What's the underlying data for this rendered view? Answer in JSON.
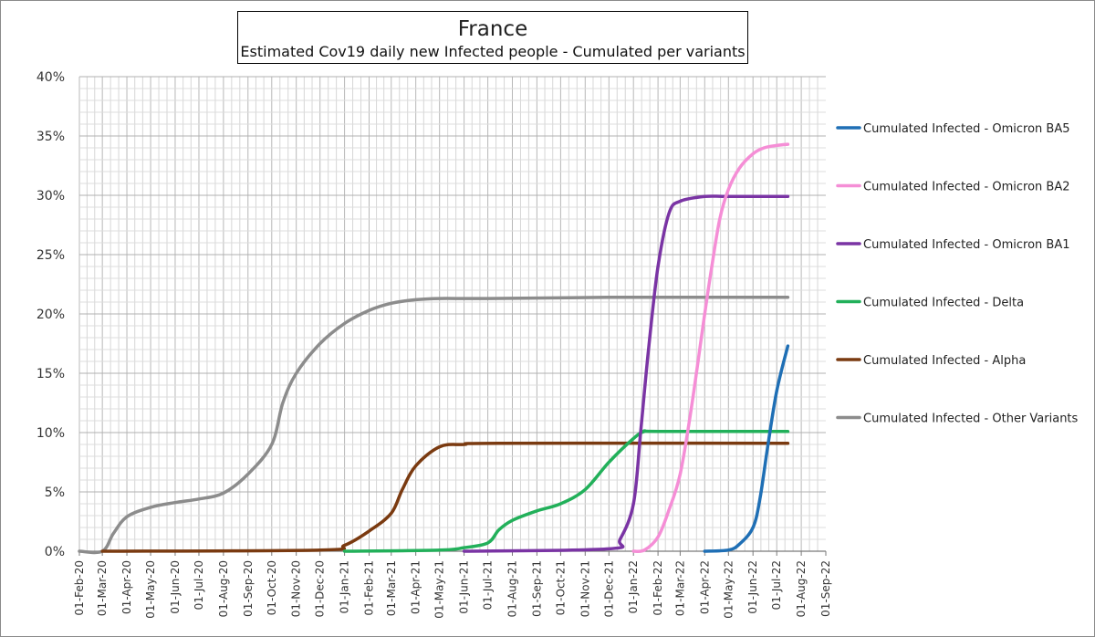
{
  "chart_data": {
    "type": "line",
    "title": "France",
    "subtitle": "Estimated Cov19 daily new Infected people - Cumulated per variants",
    "xlabel": "",
    "ylabel": "",
    "ylim": [
      0,
      40
    ],
    "y_unit": "%",
    "y_ticks": [
      "0%",
      "5%",
      "10%",
      "15%",
      "20%",
      "25%",
      "30%",
      "35%",
      "40%"
    ],
    "x_ticks": [
      "01-Feb-20",
      "01-Mar-20",
      "01-Apr-20",
      "01-May-20",
      "01-Jun-20",
      "01-Jul-20",
      "01-Aug-20",
      "01-Sep-20",
      "01-Oct-20",
      "01-Nov-20",
      "01-Dec-20",
      "01-Jan-21",
      "01-Feb-21",
      "01-Mar-21",
      "01-Apr-21",
      "01-May-21",
      "01-Jun-21",
      "01-Jul-21",
      "01-Aug-21",
      "01-Sep-21",
      "01-Oct-21",
      "01-Nov-21",
      "01-Dec-21",
      "01-Jan-22",
      "01-Feb-22",
      "01-Mar-22",
      "01-Apr-22",
      "01-May-22",
      "01-Jun-22",
      "01-Jul-22",
      "01-Aug-22",
      "01-Sep-22"
    ],
    "grid": true,
    "legend_position": "right",
    "series": [
      {
        "name": "Cumulated Infected - Omicron BA5",
        "color": "#1f6fb5",
        "points": [
          [
            "2022-04-01",
            0
          ],
          [
            "2022-05-01",
            0.1
          ],
          [
            "2022-05-15",
            0.6
          ],
          [
            "2022-06-01",
            2
          ],
          [
            "2022-06-10",
            4.5
          ],
          [
            "2022-06-20",
            9
          ],
          [
            "2022-07-01",
            13.5
          ],
          [
            "2022-07-15",
            17.3
          ]
        ]
      },
      {
        "name": "Cumulated Infected - Omicron BA2",
        "color": "#f58ed6",
        "points": [
          [
            "2022-01-01",
            0
          ],
          [
            "2022-01-15",
            0.1
          ],
          [
            "2022-02-01",
            1.2
          ],
          [
            "2022-02-15",
            3.5
          ],
          [
            "2022-03-01",
            6.5
          ],
          [
            "2022-03-15",
            12
          ],
          [
            "2022-04-01",
            20
          ],
          [
            "2022-04-10",
            24
          ],
          [
            "2022-04-20",
            28
          ],
          [
            "2022-05-01",
            30.5
          ],
          [
            "2022-05-15",
            32.3
          ],
          [
            "2022-06-01",
            33.5
          ],
          [
            "2022-06-15",
            34
          ],
          [
            "2022-07-01",
            34.2
          ],
          [
            "2022-07-15",
            34.3
          ]
        ]
      },
      {
        "name": "Cumulated Infected - Omicron BA1",
        "color": "#7a34a4",
        "points": [
          [
            "2021-06-01",
            0
          ],
          [
            "2021-12-01",
            0.2
          ],
          [
            "2021-12-15",
            1
          ],
          [
            "2022-01-01",
            4
          ],
          [
            "2022-01-10",
            10
          ],
          [
            "2022-01-20",
            17
          ],
          [
            "2022-02-01",
            24
          ],
          [
            "2022-02-15",
            28.5
          ],
          [
            "2022-03-01",
            29.5
          ],
          [
            "2022-04-01",
            29.9
          ],
          [
            "2022-05-01",
            29.9
          ],
          [
            "2022-07-15",
            29.9
          ]
        ]
      },
      {
        "name": "Cumulated Infected - Delta",
        "color": "#22b05a",
        "points": [
          [
            "2021-01-01",
            0
          ],
          [
            "2021-05-01",
            0.1
          ],
          [
            "2021-06-01",
            0.3
          ],
          [
            "2021-07-01",
            0.7
          ],
          [
            "2021-07-15",
            1.8
          ],
          [
            "2021-08-01",
            2.6
          ],
          [
            "2021-09-01",
            3.4
          ],
          [
            "2021-10-01",
            4
          ],
          [
            "2021-11-01",
            5.2
          ],
          [
            "2021-12-01",
            7.5
          ],
          [
            "2022-01-01",
            9.5
          ],
          [
            "2022-01-15",
            10.1
          ],
          [
            "2022-02-01",
            10.1
          ],
          [
            "2022-07-15",
            10.1
          ]
        ]
      },
      {
        "name": "Cumulated Infected - Alpha",
        "color": "#7a3a10",
        "points": [
          [
            "2020-03-01",
            0
          ],
          [
            "2020-12-01",
            0.1
          ],
          [
            "2021-01-01",
            0.5
          ],
          [
            "2021-02-01",
            1.7
          ],
          [
            "2021-03-01",
            3.2
          ],
          [
            "2021-03-15",
            5.2
          ],
          [
            "2021-04-01",
            7.2
          ],
          [
            "2021-05-01",
            8.8
          ],
          [
            "2021-06-01",
            9
          ],
          [
            "2021-07-15",
            9.1
          ],
          [
            "2022-07-15",
            9.1
          ]
        ]
      },
      {
        "name": "Cumulated Infected - Other Variants",
        "color": "#8c8c8c",
        "points": [
          [
            "2020-02-01",
            0
          ],
          [
            "2020-03-01",
            0
          ],
          [
            "2020-03-15",
            1.5
          ],
          [
            "2020-04-01",
            2.9
          ],
          [
            "2020-05-01",
            3.7
          ],
          [
            "2020-06-01",
            4.1
          ],
          [
            "2020-07-01",
            4.4
          ],
          [
            "2020-08-01",
            4.9
          ],
          [
            "2020-09-01",
            6.5
          ],
          [
            "2020-10-01",
            9
          ],
          [
            "2020-10-15",
            12.5
          ],
          [
            "2020-11-01",
            15
          ],
          [
            "2020-12-01",
            17.5
          ],
          [
            "2021-01-01",
            19.2
          ],
          [
            "2021-02-01",
            20.3
          ],
          [
            "2021-03-01",
            20.9
          ],
          [
            "2021-04-01",
            21.2
          ],
          [
            "2021-05-01",
            21.3
          ],
          [
            "2021-07-01",
            21.3
          ],
          [
            "2021-12-01",
            21.4
          ],
          [
            "2022-07-15",
            21.4
          ]
        ]
      }
    ]
  }
}
